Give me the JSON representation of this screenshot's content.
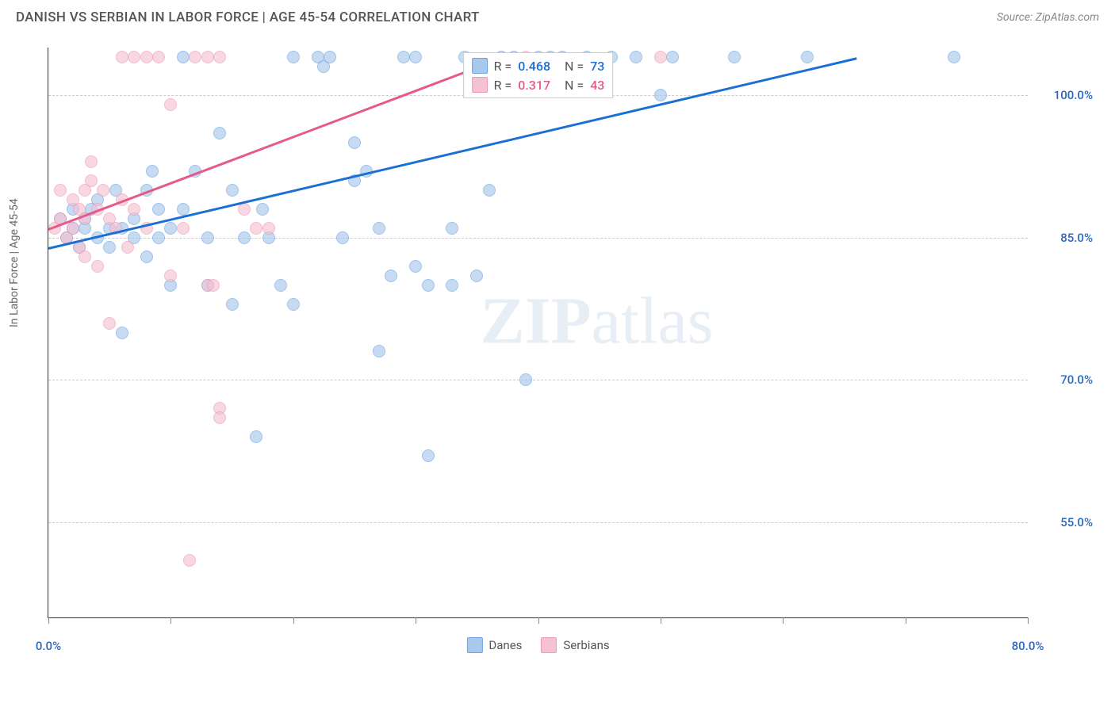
{
  "header": {
    "title": "DANISH VS SERBIAN IN LABOR FORCE | AGE 45-54 CORRELATION CHART",
    "source_label": "Source:",
    "source_name": "ZipAtlas.com"
  },
  "watermark": {
    "part1": "ZIP",
    "part2": "atlas"
  },
  "chart": {
    "type": "scatter",
    "y_axis_label": "In Labor Force | Age 45-54",
    "xlim": [
      0,
      80
    ],
    "ylim": [
      45,
      105
    ],
    "x_ticks": [
      0,
      10,
      20,
      30,
      40,
      50,
      60,
      70,
      80
    ],
    "x_tick_labels_shown": {
      "0": "0.0%",
      "80": "80.0%"
    },
    "y_ticks": [
      55,
      70,
      85,
      100
    ],
    "y_tick_labels": {
      "55": "55.0%",
      "70": "70.0%",
      "85": "85.0%",
      "100": "100.0%"
    },
    "x_label_color": "#2968c0",
    "y_label_color": "#2968c0",
    "grid_color": "#cccccc",
    "background_color": "#ffffff",
    "series": [
      {
        "name": "Danes",
        "color_fill": "#a8c8ec",
        "color_stroke": "#6da3e0",
        "trend_color": "#1a6fd6",
        "R": "0.468",
        "N": "73",
        "trend": {
          "x1": 0,
          "y1": 84,
          "x2": 66,
          "y2": 104
        },
        "points": [
          [
            1,
            87
          ],
          [
            1.5,
            85
          ],
          [
            2,
            86
          ],
          [
            2,
            88
          ],
          [
            2.5,
            84
          ],
          [
            3,
            87
          ],
          [
            3,
            86
          ],
          [
            3.5,
            88
          ],
          [
            4,
            85
          ],
          [
            4,
            89
          ],
          [
            5,
            86
          ],
          [
            5,
            84
          ],
          [
            5.5,
            90
          ],
          [
            6,
            86
          ],
          [
            6,
            75
          ],
          [
            7,
            87
          ],
          [
            7,
            85
          ],
          [
            8,
            83
          ],
          [
            8,
            90
          ],
          [
            8.5,
            92
          ],
          [
            9,
            85
          ],
          [
            9,
            88
          ],
          [
            10,
            86
          ],
          [
            10,
            80
          ],
          [
            11,
            88
          ],
          [
            11,
            104
          ],
          [
            12,
            92
          ],
          [
            13,
            85
          ],
          [
            13,
            80
          ],
          [
            14,
            96
          ],
          [
            15,
            90
          ],
          [
            15,
            78
          ],
          [
            16,
            85
          ],
          [
            17,
            64
          ],
          [
            17.5,
            88
          ],
          [
            18,
            85
          ],
          [
            19,
            80
          ],
          [
            20,
            78
          ],
          [
            20,
            104
          ],
          [
            22,
            104
          ],
          [
            22.5,
            103
          ],
          [
            23,
            104
          ],
          [
            24,
            85
          ],
          [
            25,
            91
          ],
          [
            25,
            95
          ],
          [
            26,
            92
          ],
          [
            27,
            86
          ],
          [
            27,
            73
          ],
          [
            28,
            81
          ],
          [
            29,
            104
          ],
          [
            30,
            104
          ],
          [
            30,
            82
          ],
          [
            31,
            80
          ],
          [
            31,
            62
          ],
          [
            33,
            80
          ],
          [
            33,
            86
          ],
          [
            34,
            104
          ],
          [
            35,
            81
          ],
          [
            36,
            90
          ],
          [
            37,
            104
          ],
          [
            38,
            104
          ],
          [
            39,
            70
          ],
          [
            40,
            104
          ],
          [
            41,
            104
          ],
          [
            42,
            104
          ],
          [
            44,
            104
          ],
          [
            46,
            104
          ],
          [
            48,
            104
          ],
          [
            50,
            100
          ],
          [
            51,
            104
          ],
          [
            56,
            104
          ],
          [
            62,
            104
          ],
          [
            74,
            104
          ]
        ]
      },
      {
        "name": "Serbians",
        "color_fill": "#f5c2d1",
        "color_stroke": "#eb9bb5",
        "trend_color": "#e55a8a",
        "R": "0.317",
        "N": "43",
        "trend": {
          "x1": 0,
          "y1": 86,
          "x2": 37,
          "y2": 104
        },
        "points": [
          [
            0.5,
            86
          ],
          [
            1,
            87
          ],
          [
            1,
            90
          ],
          [
            1.5,
            85
          ],
          [
            2,
            89
          ],
          [
            2,
            86
          ],
          [
            2.5,
            88
          ],
          [
            2.5,
            84
          ],
          [
            3,
            90
          ],
          [
            3,
            87
          ],
          [
            3,
            83
          ],
          [
            3.5,
            91
          ],
          [
            3.5,
            93
          ],
          [
            4,
            88
          ],
          [
            4,
            82
          ],
          [
            4.5,
            90
          ],
          [
            5,
            87
          ],
          [
            5,
            76
          ],
          [
            5.5,
            86
          ],
          [
            6,
            89
          ],
          [
            6,
            104
          ],
          [
            6.5,
            84
          ],
          [
            7,
            88
          ],
          [
            7,
            104
          ],
          [
            8,
            86
          ],
          [
            8,
            104
          ],
          [
            9,
            104
          ],
          [
            10,
            81
          ],
          [
            10,
            99
          ],
          [
            11,
            86
          ],
          [
            12,
            104
          ],
          [
            13,
            104
          ],
          [
            13,
            80
          ],
          [
            13.5,
            80
          ],
          [
            14,
            104
          ],
          [
            14,
            67
          ],
          [
            14,
            66
          ],
          [
            11.5,
            51
          ],
          [
            16,
            88
          ],
          [
            17,
            86
          ],
          [
            18,
            86
          ],
          [
            39,
            104
          ],
          [
            50,
            104
          ]
        ]
      }
    ],
    "bottom_legend": [
      {
        "label": "Danes",
        "fill": "#a8c8ec",
        "stroke": "#6da3e0"
      },
      {
        "label": "Serbians",
        "fill": "#f5c2d1",
        "stroke": "#eb9bb5"
      }
    ]
  }
}
